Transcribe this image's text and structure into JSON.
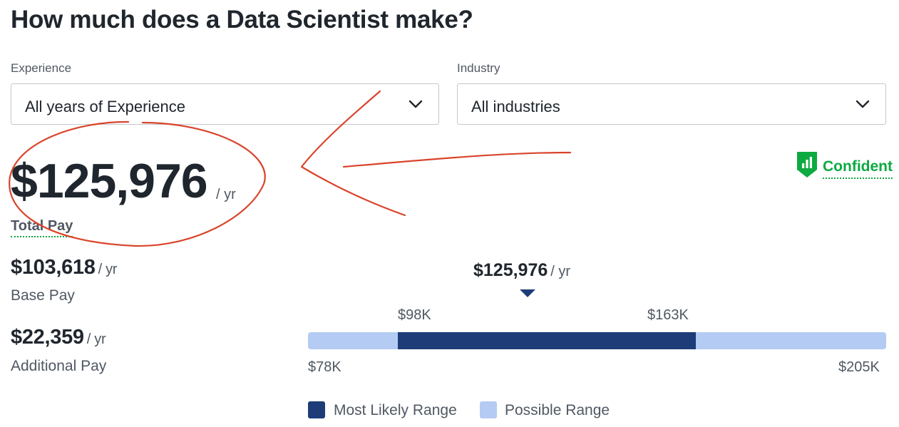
{
  "page": {
    "title": "How much does a Data Scientist make?"
  },
  "filters": {
    "experience": {
      "label": "Experience",
      "value": "All years of Experience"
    },
    "industry": {
      "label": "Industry",
      "value": "All industries"
    }
  },
  "total_pay": {
    "amount": "$125,976",
    "unit": "/ yr",
    "label": "Total Pay"
  },
  "confidence": {
    "label": "Confident",
    "icon": "bar-chart-shield-icon",
    "color": "#0caa41"
  },
  "base_pay": {
    "amount": "$103,618",
    "unit": "/ yr",
    "label": "Base Pay"
  },
  "additional_pay": {
    "amount": "$22,359",
    "unit": "/ yr",
    "label": "Additional Pay"
  },
  "range": {
    "marker_amount": "$125,976",
    "marker_unit": "/ yr",
    "likely_low_label": "$98K",
    "likely_high_label": "$163K",
    "possible_low_label": "$78K",
    "possible_high_label": "$205K",
    "possible_min": 78000,
    "likely_min": 98000,
    "median": 125976,
    "likely_max": 163000,
    "possible_max": 205000
  },
  "legend": {
    "most_likely": {
      "label": "Most Likely Range",
      "color": "#1d3c78"
    },
    "possible": {
      "label": "Possible Range",
      "color": "#b4cbf3"
    }
  },
  "annotation_color": "#d9442b"
}
